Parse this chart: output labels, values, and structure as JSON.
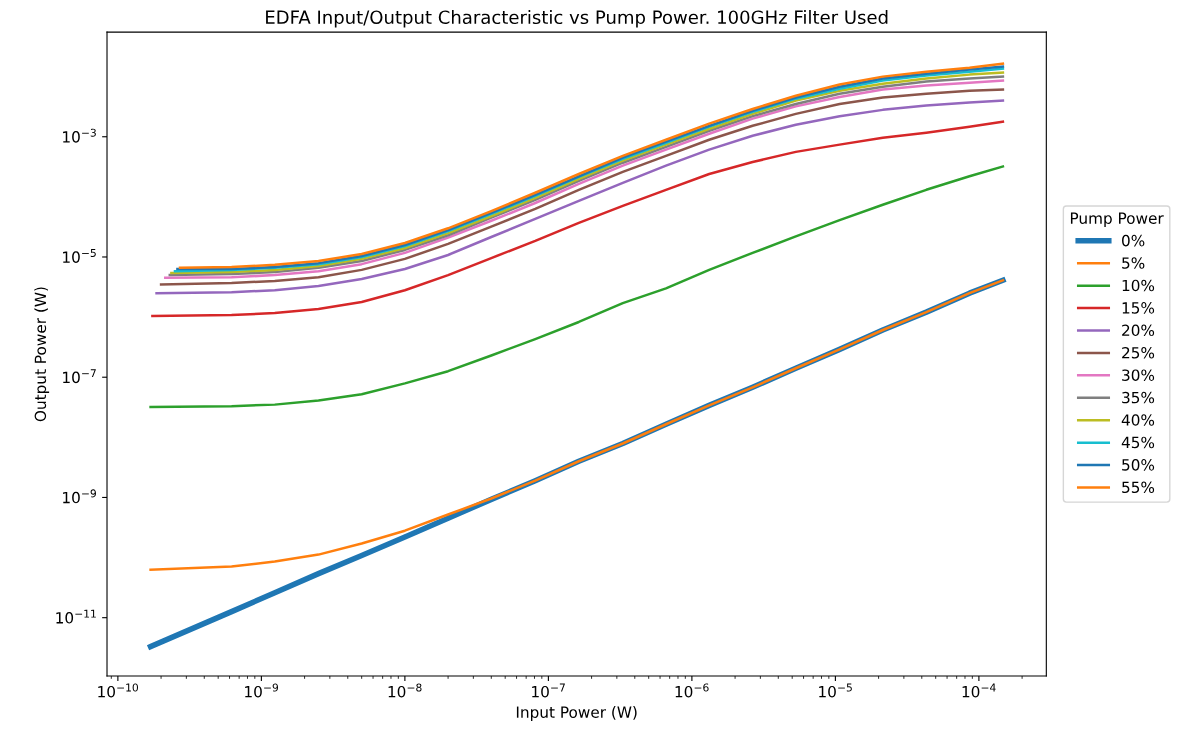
{
  "chart_data": {
    "type": "line",
    "title": "EDFA Input/Output Characteristic vs Pump Power. 100GHz Filter Used",
    "xlabel": "Input Power (W)",
    "ylabel": "Output Power (W)",
    "legend_title": "Pump Power",
    "legend": "right",
    "grid": false,
    "log": "xy",
    "xlim": [
      8.4e-11,
      0.000295
    ],
    "ylim": [
      1.07e-12,
      0.055
    ],
    "xticks": [
      {
        "value": 1e-10,
        "label": "10$^{−10}$"
      },
      {
        "value": 1e-09,
        "label": "10$^{−9}$"
      },
      {
        "value": 1e-08,
        "label": "10$^{−8}$"
      },
      {
        "value": 1e-07,
        "label": "10$^{−7}$"
      },
      {
        "value": 1e-06,
        "label": "10$^{−6}$"
      },
      {
        "value": 1e-05,
        "label": "10$^{−5}$"
      },
      {
        "value": 0.0001,
        "label": "10$^{−4}$"
      }
    ],
    "yticks": [
      {
        "value": 1e-11,
        "label": "10$^{−11}$"
      },
      {
        "value": 1e-09,
        "label": "10$^{−9}$"
      },
      {
        "value": 1e-07,
        "label": "10$^{−7}$"
      },
      {
        "value": 1e-05,
        "label": "10$^{−5}$"
      },
      {
        "value": 0.001,
        "label": "10$^{−3}$"
      }
    ],
    "series": [
      {
        "name": "0%",
        "color": "#1f77b4",
        "x": [
          1.69e-10,
          6.2e-10,
          1.24e-09,
          2.5e-09,
          5e-09,
          1e-08,
          2e-08,
          4e-08,
          8.1e-08,
          1.63e-07,
          3.3e-07,
          6.6e-07,
          1.32e-06,
          2.65e-06,
          5.3e-06,
          1.07e-05,
          2.14e-05,
          4.3e-05,
          8.6e-05,
          0.000147
        ],
        "values": [
          3.3e-12,
          1.26e-11,
          2.6e-11,
          5.4e-11,
          1.08e-10,
          2.2e-10,
          4.5e-10,
          9.3e-10,
          1.9e-09,
          4e-09,
          7.9e-09,
          1.65e-08,
          3.4e-08,
          6.8e-08,
          1.41e-07,
          2.9e-07,
          6.1e-07,
          1.21e-06,
          2.5e-06,
          4.1e-06
        ]
      },
      {
        "name": "5%",
        "color": "#ff7f0e",
        "x": [
          1.69e-10,
          6.2e-10,
          1.24e-09,
          2.5e-09,
          5e-09,
          1e-08,
          2e-08,
          4e-08,
          8.1e-08,
          1.63e-07,
          3.3e-07,
          6.6e-07,
          1.32e-06,
          2.65e-06,
          5.3e-06,
          1.07e-05,
          2.14e-05,
          4.3e-05,
          8.6e-05,
          0.000147
        ],
        "values": [
          6.3e-11,
          7.1e-11,
          8.6e-11,
          1.12e-10,
          1.71e-10,
          2.8e-10,
          5.2e-10,
          9.6e-10,
          1.9e-09,
          4e-09,
          7.9e-09,
          1.65e-08,
          3.4e-08,
          6.8e-08,
          1.41e-07,
          2.9e-07,
          6.1e-07,
          1.21e-06,
          2.5e-06,
          4.1e-06
        ]
      },
      {
        "name": "10%",
        "color": "#2ca02c",
        "x": [
          1.69e-10,
          6.2e-10,
          1.24e-09,
          2.5e-09,
          5e-09,
          1e-08,
          2e-08,
          4e-08,
          8.1e-08,
          1.63e-07,
          3.3e-07,
          6.6e-07,
          1.32e-06,
          2.65e-06,
          5.3e-06,
          1.07e-05,
          2.14e-05,
          4.3e-05,
          8.6e-05,
          0.000147
        ],
        "values": [
          3.2e-08,
          3.3e-08,
          3.5e-08,
          4.1e-08,
          5.2e-08,
          7.9e-08,
          1.26e-07,
          2.3e-07,
          4.3e-07,
          8.3e-07,
          1.71e-06,
          3e-06,
          6.1e-06,
          1.17e-05,
          2.2e-05,
          4.1e-05,
          7.4e-05,
          0.000131,
          0.00022,
          0.00032
        ]
      },
      {
        "name": "15%",
        "color": "#d62728",
        "x": [
          1.74e-10,
          6.2e-10,
          1.24e-09,
          2.5e-09,
          5e-09,
          1e-08,
          2e-08,
          4e-08,
          8.1e-08,
          1.63e-07,
          3.3e-07,
          6.6e-07,
          1.32e-06,
          2.65e-06,
          5.3e-06,
          1.07e-05,
          2.14e-05,
          4.3e-05,
          8.6e-05,
          0.000147
        ],
        "values": [
          1.04e-06,
          1.08e-06,
          1.17e-06,
          1.36e-06,
          1.78e-06,
          2.8e-06,
          5e-06,
          9.6e-06,
          1.85e-05,
          3.7e-05,
          7.1e-05,
          0.000131,
          0.00024,
          0.00038,
          0.00056,
          0.00074,
          0.00096,
          0.00117,
          0.00147,
          0.00178
        ]
      },
      {
        "name": "20%",
        "color": "#9467bd",
        "x": [
          1.86e-10,
          6.2e-10,
          1.24e-09,
          2.5e-09,
          5e-09,
          1e-08,
          2e-08,
          4e-08,
          8.1e-08,
          1.63e-07,
          3.3e-07,
          6.6e-07,
          1.32e-06,
          2.65e-06,
          5.3e-06,
          1.07e-05,
          2.14e-05,
          4.3e-05,
          8.6e-05,
          0.000147
        ],
        "values": [
          2.5e-06,
          2.6e-06,
          2.8e-06,
          3.3e-06,
          4.3e-06,
          6.3e-06,
          1.08e-05,
          2.15e-05,
          4.3e-05,
          8.6e-05,
          0.000171,
          0.00033,
          0.00061,
          0.00104,
          0.00158,
          0.0022,
          0.0028,
          0.0033,
          0.0037,
          0.004
        ]
      },
      {
        "name": "25%",
        "color": "#8c564b",
        "x": [
          2e-10,
          6.2e-10,
          1.24e-09,
          2.5e-09,
          5e-09,
          1e-08,
          2e-08,
          4e-08,
          8.1e-08,
          1.63e-07,
          3.3e-07,
          6.6e-07,
          1.32e-06,
          2.65e-06,
          5.3e-06,
          1.07e-05,
          2.14e-05,
          4.3e-05,
          8.6e-05,
          0.000147
        ],
        "values": [
          3.5e-06,
          3.7e-06,
          4e-06,
          4.6e-06,
          6.1e-06,
          9.3e-06,
          1.65e-05,
          3.2e-05,
          6.3e-05,
          0.000131,
          0.00026,
          0.00048,
          0.00089,
          0.00152,
          0.0024,
          0.0035,
          0.0045,
          0.0052,
          0.0058,
          0.0061
        ]
      },
      {
        "name": "30%",
        "color": "#e377c2",
        "x": [
          2.14e-10,
          6.2e-10,
          1.24e-09,
          2.5e-09,
          5e-09,
          1e-08,
          2e-08,
          4e-08,
          8.1e-08,
          1.63e-07,
          3.3e-07,
          6.6e-07,
          1.32e-06,
          2.65e-06,
          5.3e-06,
          1.07e-05,
          2.14e-05,
          4.3e-05,
          8.6e-05,
          0.000147
        ],
        "values": [
          4.5e-06,
          4.6e-06,
          5e-06,
          5.8e-06,
          7.6e-06,
          1.17e-05,
          2.1e-05,
          4e-05,
          7.9e-05,
          0.000165,
          0.00033,
          0.00061,
          0.00112,
          0.002,
          0.0032,
          0.0046,
          0.0061,
          0.0071,
          0.0079,
          0.0086
        ]
      },
      {
        "name": "35%",
        "color": "#7f7f7f",
        "x": [
          2.3e-10,
          6.2e-10,
          1.24e-09,
          2.5e-09,
          5e-09,
          1e-08,
          2e-08,
          4e-08,
          8.1e-08,
          1.63e-07,
          3.3e-07,
          6.6e-07,
          1.32e-06,
          2.65e-06,
          5.3e-06,
          1.07e-05,
          2.14e-05,
          4.3e-05,
          8.6e-05,
          0.000147
        ],
        "values": [
          5e-06,
          5.2e-06,
          5.6e-06,
          6.6e-06,
          8.6e-06,
          1.31e-05,
          2.3e-05,
          4.5e-05,
          8.9e-05,
          0.000185,
          0.00037,
          0.00068,
          0.00126,
          0.0022,
          0.0035,
          0.0052,
          0.0068,
          0.0083,
          0.0093,
          0.01
        ]
      },
      {
        "name": "40%",
        "color": "#bcbd22",
        "x": [
          2.36e-10,
          6.2e-10,
          1.24e-09,
          2.5e-09,
          5e-09,
          1e-08,
          2e-08,
          4e-08,
          8.1e-08,
          1.63e-07,
          3.3e-07,
          6.6e-07,
          1.32e-06,
          2.65e-06,
          5.3e-06,
          1.07e-05,
          2.14e-05,
          4.3e-05,
          8.6e-05,
          0.000147
        ],
        "values": [
          5.4e-06,
          5.6e-06,
          6.1e-06,
          7.1e-06,
          9.3e-06,
          1.41e-05,
          2.5e-05,
          4.8e-05,
          9.6e-05,
          0.0002,
          0.0004,
          0.00074,
          0.00136,
          0.0024,
          0.004,
          0.0058,
          0.0076,
          0.0093,
          0.0108,
          0.0117
        ]
      },
      {
        "name": "45%",
        "color": "#17becf",
        "x": [
          2.5e-10,
          6.2e-10,
          1.24e-09,
          2.5e-09,
          5e-09,
          1e-08,
          2e-08,
          4e-08,
          8.1e-08,
          1.63e-07,
          3.3e-07,
          6.6e-07,
          1.32e-06,
          2.65e-06,
          5.3e-06,
          1.07e-05,
          2.14e-05,
          4.3e-05,
          8.6e-05,
          0.000147
        ],
        "values": [
          5.8e-06,
          6.1e-06,
          6.6e-06,
          7.6e-06,
          1e-05,
          1.52e-05,
          2.7e-05,
          5.2e-05,
          0.000104,
          0.000215,
          0.00043,
          0.00079,
          0.00147,
          0.0026,
          0.0043,
          0.0063,
          0.0086,
          0.0104,
          0.0121,
          0.0136
        ]
      },
      {
        "name": "50%",
        "color": "#1f77b4",
        "x": [
          2.6e-10,
          6.2e-10,
          1.24e-09,
          2.5e-09,
          5e-09,
          1e-08,
          2e-08,
          4e-08,
          8.1e-08,
          1.63e-07,
          3.3e-07,
          6.6e-07,
          1.32e-06,
          2.65e-06,
          5.3e-06,
          1.07e-05,
          2.14e-05,
          4.3e-05,
          8.6e-05,
          0.000147
        ],
        "values": [
          6.3e-06,
          6.3e-06,
          6.8e-06,
          7.9e-06,
          1.04e-05,
          1.58e-05,
          2.8e-05,
          5.4e-05,
          0.000108,
          0.00022,
          0.00045,
          0.00083,
          0.00152,
          0.0027,
          0.0045,
          0.0068,
          0.0093,
          0.0112,
          0.0131,
          0.0147
        ]
      },
      {
        "name": "55%",
        "color": "#ff7f0e",
        "x": [
          2.71e-10,
          6.2e-10,
          1.24e-09,
          2.5e-09,
          5e-09,
          1e-08,
          2e-08,
          4e-08,
          8.1e-08,
          1.63e-07,
          3.3e-07,
          6.6e-07,
          1.32e-06,
          2.65e-06,
          5.3e-06,
          1.07e-05,
          2.14e-05,
          4.3e-05,
          8.6e-05,
          0.000147
        ],
        "values": [
          6.6e-06,
          6.8e-06,
          7.4e-06,
          8.6e-06,
          1.12e-05,
          1.71e-05,
          3e-05,
          5.8e-05,
          0.000117,
          0.00024,
          0.00048,
          0.00089,
          0.00165,
          0.0029,
          0.0048,
          0.0074,
          0.01,
          0.0121,
          0.0141,
          0.0165
        ]
      }
    ]
  }
}
